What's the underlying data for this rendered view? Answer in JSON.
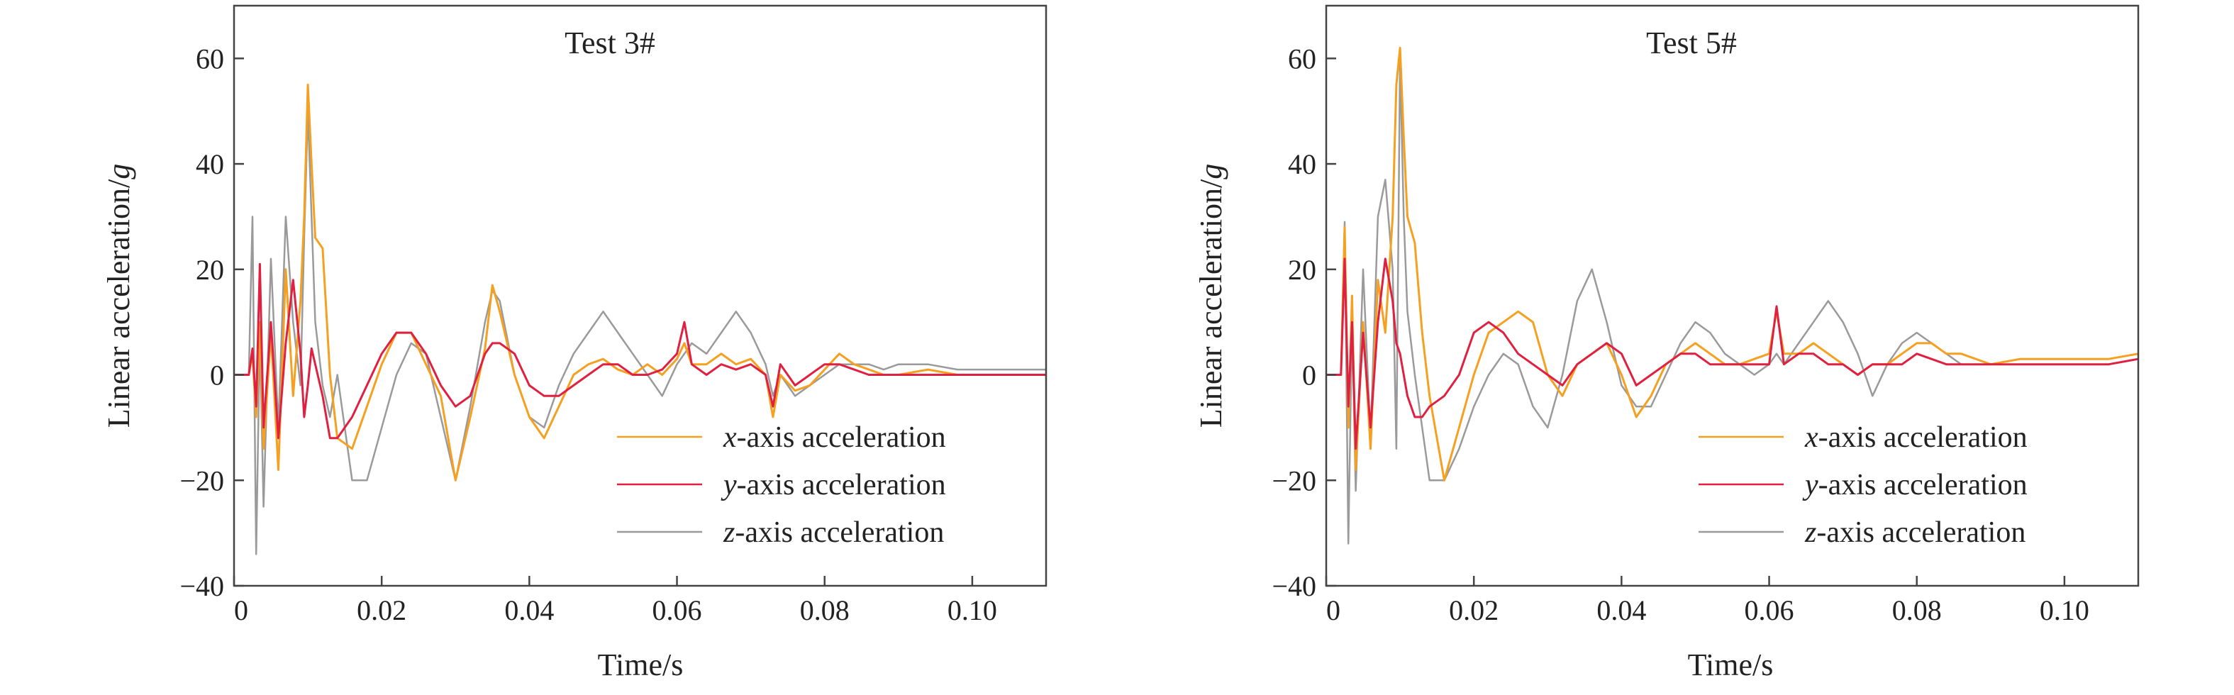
{
  "figure": {
    "description_free": true
  },
  "chart_data": [
    {
      "type": "line",
      "title": "Test 3#",
      "xlabel": "Time/s",
      "ylabel": "Linear acceleration/",
      "ylabel_italic": "g",
      "xlim": [
        0,
        0.11
      ],
      "ylim": [
        -40,
        70
      ],
      "xticks": [
        "0",
        "0.02",
        "0.04",
        "0.06",
        "0.08",
        "0.10"
      ],
      "xtick_values": [
        0,
        0.02,
        0.04,
        0.06,
        0.08,
        0.1
      ],
      "yticks": [
        "−40",
        "−20",
        "0",
        "20",
        "40",
        "60"
      ],
      "ytick_values": [
        -40,
        -20,
        0,
        20,
        40,
        60
      ],
      "grid": false,
      "legend_position": "lower-right",
      "series": [
        {
          "name": "x-axis acceleration",
          "name_italic": "x",
          "name_rest": "-axis acceleration",
          "color": "#f5a020",
          "x": [
            0,
            0.002,
            0.0025,
            0.003,
            0.0035,
            0.004,
            0.005,
            0.006,
            0.007,
            0.008,
            0.009,
            0.0095,
            0.01,
            0.0105,
            0.011,
            0.012,
            0.013,
            0.014,
            0.016,
            0.018,
            0.02,
            0.022,
            0.024,
            0.026,
            0.028,
            0.03,
            0.032,
            0.034,
            0.035,
            0.036,
            0.038,
            0.04,
            0.042,
            0.044,
            0.046,
            0.048,
            0.05,
            0.052,
            0.054,
            0.056,
            0.058,
            0.06,
            0.061,
            0.062,
            0.064,
            0.066,
            0.068,
            0.07,
            0.072,
            0.073,
            0.074,
            0.076,
            0.078,
            0.08,
            0.082,
            0.084,
            0.086,
            0.088,
            0.09,
            0.094,
            0.098,
            0.102,
            0.106,
            0.11
          ],
          "y": [
            0,
            0,
            4,
            -8,
            10,
            -14,
            8,
            -18,
            20,
            -4,
            14,
            30,
            55,
            40,
            26,
            24,
            0,
            -12,
            -14,
            -6,
            2,
            8,
            8,
            2,
            -4,
            -20,
            -8,
            5,
            17,
            12,
            0,
            -8,
            -12,
            -6,
            0,
            2,
            3,
            1,
            0,
            2,
            0,
            3,
            6,
            2,
            2,
            4,
            2,
            3,
            0,
            -8,
            0,
            -3,
            -2,
            1,
            4,
            2,
            1,
            0,
            0,
            1,
            0,
            0,
            0,
            0
          ]
        },
        {
          "name": "y-axis acceleration",
          "name_italic": "y",
          "name_rest": "-axis acceleration",
          "color": "#e02040",
          "x": [
            0,
            0.002,
            0.0025,
            0.003,
            0.0035,
            0.004,
            0.005,
            0.006,
            0.007,
            0.008,
            0.009,
            0.0095,
            0.01,
            0.0105,
            0.011,
            0.012,
            0.013,
            0.014,
            0.016,
            0.018,
            0.02,
            0.022,
            0.024,
            0.026,
            0.028,
            0.03,
            0.032,
            0.034,
            0.035,
            0.036,
            0.038,
            0.04,
            0.042,
            0.044,
            0.046,
            0.048,
            0.05,
            0.052,
            0.054,
            0.056,
            0.058,
            0.06,
            0.061,
            0.062,
            0.064,
            0.066,
            0.068,
            0.07,
            0.072,
            0.073,
            0.074,
            0.076,
            0.078,
            0.08,
            0.082,
            0.084,
            0.086,
            0.088,
            0.09,
            0.094,
            0.098,
            0.102,
            0.106,
            0.11
          ],
          "y": [
            0,
            0,
            5,
            -6,
            21,
            -10,
            10,
            -12,
            6,
            18,
            4,
            -8,
            -2,
            5,
            2,
            -4,
            -12,
            -12,
            -8,
            -2,
            4,
            8,
            8,
            4,
            -2,
            -6,
            -4,
            4,
            6,
            6,
            4,
            -2,
            -4,
            -4,
            -2,
            0,
            2,
            2,
            0,
            0,
            1,
            4,
            10,
            2,
            0,
            2,
            1,
            2,
            0,
            -6,
            2,
            -2,
            0,
            2,
            2,
            1,
            0,
            0,
            0,
            0,
            0,
            0,
            0,
            0
          ]
        },
        {
          "name": "z-axis acceleration",
          "name_italic": "z",
          "name_rest": "-axis acceleration",
          "color": "#9a9a9a",
          "x": [
            0,
            0.002,
            0.0025,
            0.003,
            0.0035,
            0.004,
            0.005,
            0.006,
            0.007,
            0.008,
            0.009,
            0.0095,
            0.01,
            0.0105,
            0.011,
            0.012,
            0.013,
            0.014,
            0.016,
            0.018,
            0.02,
            0.022,
            0.024,
            0.026,
            0.028,
            0.03,
            0.032,
            0.034,
            0.035,
            0.036,
            0.038,
            0.04,
            0.042,
            0.044,
            0.046,
            0.048,
            0.05,
            0.052,
            0.054,
            0.056,
            0.058,
            0.06,
            0.061,
            0.062,
            0.064,
            0.066,
            0.068,
            0.07,
            0.072,
            0.073,
            0.074,
            0.076,
            0.078,
            0.08,
            0.082,
            0.084,
            0.086,
            0.088,
            0.09,
            0.094,
            0.098,
            0.102,
            0.106,
            0.11
          ],
          "y": [
            0,
            0,
            30,
            -34,
            8,
            -25,
            22,
            -10,
            30,
            10,
            -2,
            26,
            50,
            30,
            10,
            -2,
            -8,
            0,
            -20,
            -20,
            -10,
            0,
            6,
            4,
            -8,
            -20,
            -6,
            10,
            16,
            14,
            0,
            -8,
            -10,
            -2,
            4,
            8,
            12,
            8,
            4,
            0,
            -4,
            2,
            4,
            6,
            4,
            8,
            12,
            8,
            2,
            -4,
            0,
            -4,
            -2,
            0,
            2,
            2,
            2,
            1,
            2,
            2,
            1,
            1,
            1,
            1
          ]
        }
      ]
    },
    {
      "type": "line",
      "title": "Test 5#",
      "xlabel": "Time/s",
      "ylabel": "Linear acceleration/",
      "ylabel_italic": "g",
      "xlim": [
        0,
        0.11
      ],
      "ylim": [
        -40,
        70
      ],
      "xticks": [
        "0",
        "0.02",
        "0.04",
        "0.06",
        "0.08",
        "0.10"
      ],
      "xtick_values": [
        0,
        0.02,
        0.04,
        0.06,
        0.08,
        0.1
      ],
      "yticks": [
        "−40",
        "−20",
        "0",
        "20",
        "40",
        "60"
      ],
      "ytick_values": [
        -40,
        -20,
        0,
        20,
        40,
        60
      ],
      "grid": false,
      "legend_position": "lower-right",
      "series": [
        {
          "name": "x-axis acceleration",
          "name_italic": "x",
          "name_rest": "-axis acceleration",
          "color": "#f5a020",
          "x": [
            0,
            0.002,
            0.0025,
            0.003,
            0.0035,
            0.004,
            0.005,
            0.006,
            0.007,
            0.008,
            0.009,
            0.0095,
            0.01,
            0.0105,
            0.011,
            0.012,
            0.013,
            0.014,
            0.016,
            0.018,
            0.02,
            0.022,
            0.024,
            0.026,
            0.028,
            0.03,
            0.032,
            0.034,
            0.036,
            0.038,
            0.04,
            0.042,
            0.044,
            0.046,
            0.048,
            0.05,
            0.052,
            0.054,
            0.056,
            0.058,
            0.06,
            0.061,
            0.062,
            0.064,
            0.066,
            0.068,
            0.07,
            0.072,
            0.074,
            0.076,
            0.078,
            0.08,
            0.082,
            0.084,
            0.086,
            0.088,
            0.09,
            0.094,
            0.098,
            0.102,
            0.106,
            0.11
          ],
          "y": [
            0,
            0,
            28,
            -10,
            15,
            -18,
            10,
            -14,
            18,
            8,
            30,
            55,
            62,
            45,
            30,
            25,
            8,
            -4,
            -20,
            -10,
            0,
            8,
            10,
            12,
            10,
            0,
            -4,
            2,
            4,
            6,
            0,
            -8,
            -4,
            2,
            4,
            6,
            4,
            2,
            2,
            3,
            4,
            12,
            4,
            4,
            6,
            4,
            2,
            0,
            2,
            2,
            4,
            6,
            6,
            4,
            4,
            3,
            2,
            3,
            3,
            3,
            3,
            4
          ]
        },
        {
          "name": "y-axis acceleration",
          "name_italic": "y",
          "name_rest": "-axis acceleration",
          "color": "#e02040",
          "x": [
            0,
            0.002,
            0.0025,
            0.003,
            0.0035,
            0.004,
            0.005,
            0.006,
            0.007,
            0.008,
            0.009,
            0.0095,
            0.01,
            0.0105,
            0.011,
            0.012,
            0.013,
            0.014,
            0.016,
            0.018,
            0.02,
            0.022,
            0.024,
            0.026,
            0.028,
            0.03,
            0.032,
            0.034,
            0.036,
            0.038,
            0.04,
            0.042,
            0.044,
            0.046,
            0.048,
            0.05,
            0.052,
            0.054,
            0.056,
            0.058,
            0.06,
            0.061,
            0.062,
            0.064,
            0.066,
            0.068,
            0.07,
            0.072,
            0.074,
            0.076,
            0.078,
            0.08,
            0.082,
            0.084,
            0.086,
            0.088,
            0.09,
            0.094,
            0.098,
            0.102,
            0.106,
            0.11
          ],
          "y": [
            0,
            0,
            22,
            -6,
            10,
            -14,
            8,
            -10,
            10,
            22,
            14,
            6,
            4,
            0,
            -4,
            -8,
            -8,
            -6,
            -4,
            0,
            8,
            10,
            8,
            4,
            2,
            0,
            -2,
            2,
            4,
            6,
            4,
            -2,
            0,
            2,
            4,
            4,
            2,
            2,
            2,
            2,
            2,
            13,
            2,
            4,
            4,
            2,
            2,
            0,
            2,
            2,
            2,
            4,
            3,
            2,
            2,
            2,
            2,
            2,
            2,
            2,
            2,
            3
          ]
        },
        {
          "name": "z-axis acceleration",
          "name_italic": "z",
          "name_rest": "-axis acceleration",
          "color": "#9a9a9a",
          "x": [
            0,
            0.002,
            0.0025,
            0.003,
            0.0035,
            0.004,
            0.005,
            0.006,
            0.007,
            0.008,
            0.009,
            0.0095,
            0.01,
            0.0105,
            0.011,
            0.012,
            0.013,
            0.014,
            0.016,
            0.018,
            0.02,
            0.022,
            0.024,
            0.026,
            0.028,
            0.03,
            0.032,
            0.034,
            0.036,
            0.038,
            0.04,
            0.042,
            0.044,
            0.046,
            0.048,
            0.05,
            0.052,
            0.054,
            0.056,
            0.058,
            0.06,
            0.061,
            0.062,
            0.064,
            0.066,
            0.068,
            0.07,
            0.072,
            0.074,
            0.076,
            0.078,
            0.08,
            0.082,
            0.084,
            0.086,
            0.088,
            0.09,
            0.094,
            0.098,
            0.102,
            0.106,
            0.11
          ],
          "y": [
            0,
            0,
            29,
            -32,
            10,
            -22,
            20,
            -12,
            30,
            37,
            20,
            -14,
            60,
            30,
            12,
            0,
            -10,
            -20,
            -20,
            -14,
            -6,
            0,
            4,
            2,
            -6,
            -10,
            0,
            14,
            20,
            10,
            -2,
            -6,
            -6,
            0,
            6,
            10,
            8,
            4,
            2,
            0,
            2,
            4,
            2,
            6,
            10,
            14,
            10,
            4,
            -4,
            2,
            6,
            8,
            6,
            4,
            2,
            2,
            2,
            2,
            2,
            2,
            2,
            3
          ]
        }
      ]
    }
  ]
}
